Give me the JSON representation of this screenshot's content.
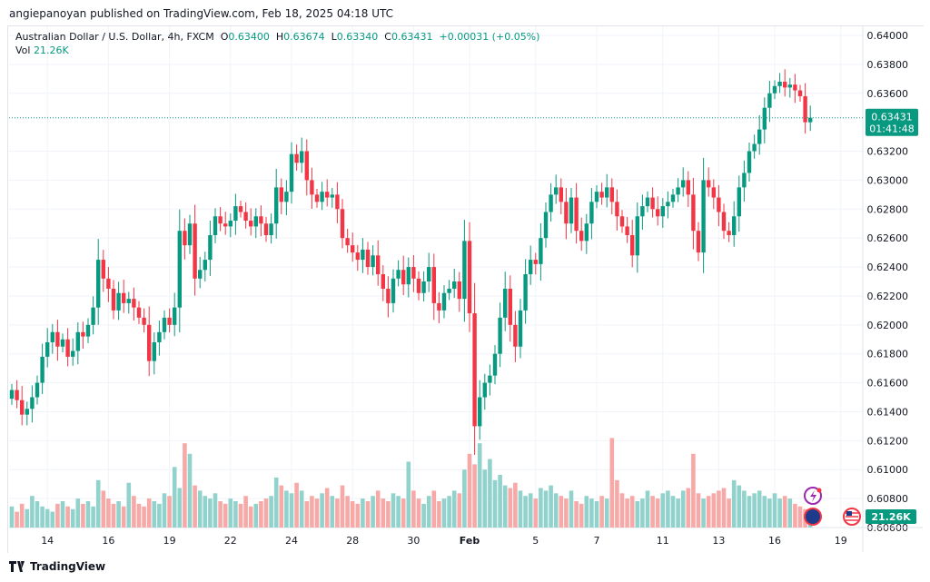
{
  "publisher_line": "angiepanoyan published on TradingView.com, Feb 18, 2025 04:18 UTC",
  "legend": {
    "symbol": "Australian Dollar / U.S. Dollar, 4h, FXCM",
    "o_label": "O",
    "o": "0.63400",
    "h_label": "H",
    "h": "0.63674",
    "l_label": "L",
    "l": "0.63340",
    "c_label": "C",
    "c": "0.63431",
    "change": "+0.00031 (+0.05%)",
    "vol_label": "Vol",
    "vol": "21.26K"
  },
  "last_price_label": "0.63431",
  "countdown": "01:41:48",
  "volume_label": "21.26K",
  "footer_brand": "TradingView",
  "colors": {
    "up": "#089981",
    "down": "#f23645",
    "up_vol": "#92d2cc",
    "down_vol": "#f7a9a7"
  },
  "chart_data": {
    "type": "candlestick",
    "title": "Australian Dollar / U.S. Dollar, 4h, FXCM",
    "ylim": [
      0.606,
      0.64
    ],
    "yticks": [
      "0.64000",
      "0.63800",
      "0.63600",
      "0.63200",
      "0.63000",
      "0.62800",
      "0.62600",
      "0.62400",
      "0.62200",
      "0.62000",
      "0.61800",
      "0.61600",
      "0.61400",
      "0.61200",
      "0.61000",
      "0.60800",
      "0.60600"
    ],
    "xticks": [
      {
        "label": "14",
        "i": 7
      },
      {
        "label": "16",
        "i": 19
      },
      {
        "label": "19",
        "i": 31
      },
      {
        "label": "22",
        "i": 43
      },
      {
        "label": "24",
        "i": 55
      },
      {
        "label": "28",
        "i": 67
      },
      {
        "label": "30",
        "i": 79
      },
      {
        "label": "Feb",
        "i": 90
      },
      {
        "label": "5",
        "i": 103
      },
      {
        "label": "7",
        "i": 115
      },
      {
        "label": "11",
        "i": 128
      },
      {
        "label": "13",
        "i": 139
      },
      {
        "label": "16",
        "i": 150
      },
      {
        "label": "19",
        "i": 163
      }
    ],
    "close": [
      0.6155,
      0.6148,
      0.6138,
      0.6142,
      0.615,
      0.616,
      0.6178,
      0.6188,
      0.6195,
      0.6185,
      0.619,
      0.6178,
      0.6182,
      0.6195,
      0.6192,
      0.62,
      0.6212,
      0.6245,
      0.6232,
      0.6225,
      0.621,
      0.6222,
      0.6215,
      0.6218,
      0.6212,
      0.6205,
      0.62,
      0.6175,
      0.6188,
      0.6195,
      0.6205,
      0.62,
      0.6212,
      0.6265,
      0.6255,
      0.627,
      0.6232,
      0.6238,
      0.6245,
      0.6262,
      0.6275,
      0.627,
      0.6268,
      0.6272,
      0.6282,
      0.6278,
      0.6272,
      0.6268,
      0.6275,
      0.627,
      0.6262,
      0.627,
      0.6295,
      0.6285,
      0.6292,
      0.6318,
      0.6312,
      0.632,
      0.63,
      0.629,
      0.6285,
      0.6292,
      0.6288,
      0.629,
      0.628,
      0.626,
      0.6255,
      0.625,
      0.6245,
      0.6252,
      0.624,
      0.6248,
      0.6235,
      0.6225,
      0.6215,
      0.6232,
      0.6238,
      0.6228,
      0.624,
      0.6232,
      0.6222,
      0.623,
      0.624,
      0.6215,
      0.621,
      0.6222,
      0.6225,
      0.623,
      0.6218,
      0.6258,
      0.6208,
      0.613,
      0.615,
      0.616,
      0.6165,
      0.618,
      0.6205,
      0.6225,
      0.62,
      0.6185,
      0.621,
      0.6235,
      0.6245,
      0.6242,
      0.626,
      0.6278,
      0.629,
      0.6295,
      0.6285,
      0.627,
      0.6288,
      0.6265,
      0.6258,
      0.627,
      0.6285,
      0.6292,
      0.6288,
      0.6295,
      0.6285,
      0.6275,
      0.6268,
      0.6262,
      0.6248,
      0.6275,
      0.6282,
      0.6288,
      0.628,
      0.6275,
      0.6282,
      0.6285,
      0.629,
      0.6295,
      0.63,
      0.629,
      0.6265,
      0.625,
      0.63,
      0.6295,
      0.6288,
      0.6278,
      0.6265,
      0.6262,
      0.6275,
      0.6295,
      0.6305,
      0.632,
      0.6325,
      0.6335,
      0.635,
      0.636,
      0.6365,
      0.6368,
      0.6364,
      0.6366,
      0.6362,
      0.6358,
      0.634,
      0.63431
    ],
    "volume_k": [
      40,
      30,
      45,
      35,
      60,
      50,
      40,
      35,
      30,
      45,
      50,
      40,
      35,
      55,
      45,
      50,
      40,
      90,
      70,
      55,
      45,
      50,
      40,
      85,
      60,
      45,
      40,
      55,
      50,
      45,
      65,
      60,
      115,
      75,
      160,
      140,
      80,
      70,
      60,
      55,
      65,
      50,
      45,
      55,
      50,
      45,
      60,
      40,
      45,
      50,
      55,
      60,
      95,
      80,
      70,
      65,
      85,
      70,
      50,
      60,
      55,
      65,
      75,
      60,
      55,
      80,
      60,
      50,
      45,
      55,
      50,
      60,
      70,
      55,
      50,
      65,
      60,
      55,
      125,
      70,
      55,
      45,
      60,
      70,
      50,
      55,
      60,
      70,
      65,
      110,
      140,
      120,
      160,
      110,
      130,
      90,
      100,
      80,
      75,
      85,
      70,
      60,
      65,
      55,
      75,
      70,
      80,
      65,
      60,
      55,
      70,
      50,
      45,
      60,
      55,
      50,
      60,
      55,
      170,
      90,
      65,
      55,
      60,
      50,
      55,
      70,
      60,
      55,
      65,
      70,
      60,
      55,
      70,
      75,
      140,
      65,
      55,
      60,
      65,
      70,
      75,
      55,
      90,
      80,
      70,
      60,
      65,
      70,
      60,
      55,
      65,
      55,
      60,
      55,
      45,
      40,
      35,
      21.26
    ]
  }
}
